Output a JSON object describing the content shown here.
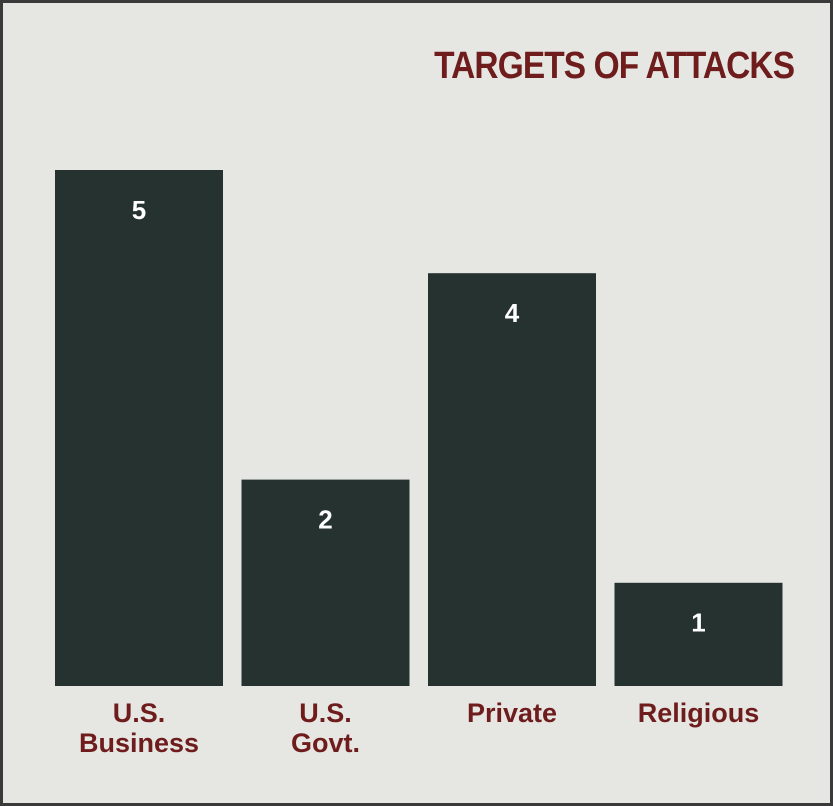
{
  "chart_data": {
    "type": "bar",
    "title": "TARGETS OF ATTACKS",
    "categories": [
      "U.S. Business",
      "U.S. Govt.",
      "Private",
      "Religious"
    ],
    "values": [
      5,
      2,
      4,
      1
    ],
    "color": "#253230"
  }
}
